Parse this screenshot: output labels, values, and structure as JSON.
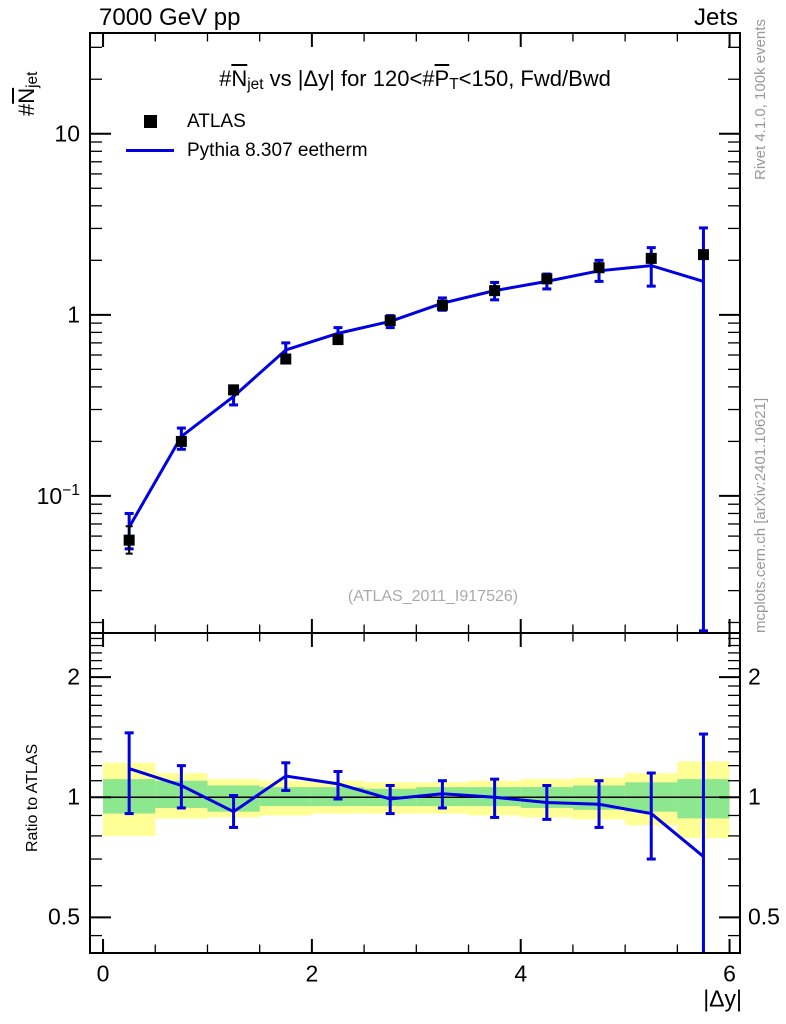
{
  "header": {
    "left": "7000 GeV pp",
    "right": "Jets"
  },
  "side_notes": {
    "top": "Rivet 4.1.0,  100k events",
    "bottom": "mcplots.cern.ch [arXiv:2401.10621]"
  },
  "watermark": "(ATLAS_2011_I917526)",
  "title_parts": {
    "p1": "#",
    "p2": "N",
    "p3": "jet",
    "p4": " vs |Δy| for 120<#",
    "p5": "P",
    "p6": "T",
    "p7": "<150, Fwd/Bwd"
  },
  "ylabel_parts": {
    "p1": "#",
    "p2": "N",
    "p3": "jet"
  },
  "legend": {
    "data_label": "ATLAS",
    "mc_label": "Pythia 8.307 eetherm"
  },
  "chart_data": {
    "type": "line",
    "title": "#Njet vs |dy| for 120<#PT<150, Fwd/Bwd",
    "xlabel": "|Δy|",
    "ylabel": "#Njet",
    "ratio_ylabel": "Ratio to ATLAS",
    "xlim": [
      -0.125,
      6.1
    ],
    "main_ylim": [
      0.0175,
      36
    ],
    "ratio_ylim": [
      0.407,
      2.58
    ],
    "x_major_ticks": [
      {
        "v": 0,
        "label": "0"
      },
      {
        "v": 2,
        "label": "2"
      },
      {
        "v": 4,
        "label": "4"
      },
      {
        "v": 6,
        "label": "6"
      }
    ],
    "main_y_ticks": [
      {
        "v": 10,
        "label": "10"
      },
      {
        "v": 1,
        "label": "1"
      },
      {
        "v": 0.1,
        "label": "10",
        "sup": "−1"
      }
    ],
    "ratio_y_ticks": [
      {
        "v": 2,
        "label": "2"
      },
      {
        "v": 1,
        "label": "1"
      },
      {
        "v": 0.5,
        "label": "0.5"
      }
    ],
    "x": [
      0.25,
      0.75,
      1.25,
      1.75,
      2.25,
      2.75,
      3.25,
      3.75,
      4.25,
      4.75,
      5.25,
      5.75
    ],
    "series": [
      {
        "name": "ATLAS",
        "style": "squares",
        "values": [
          0.057,
          0.2,
          0.385,
          0.57,
          0.73,
          0.93,
          1.13,
          1.36,
          1.58,
          1.82,
          2.05,
          2.15
        ],
        "err_lo": [
          0.048,
          0.19,
          0.366,
          0.54,
          0.69,
          0.88,
          1.07,
          1.29,
          1.5,
          1.73,
          1.95,
          2.04
        ],
        "err_hi": [
          0.068,
          0.21,
          0.404,
          0.6,
          0.77,
          0.98,
          1.19,
          1.43,
          1.66,
          1.91,
          2.15,
          2.26
        ]
      },
      {
        "name": "Pythia 8.307 eetherm",
        "style": "line",
        "values": [
          0.0672,
          0.213,
          0.354,
          0.64,
          0.79,
          0.92,
          1.16,
          1.36,
          1.53,
          1.75,
          1.87,
          1.53
        ],
        "err_lo": [
          0.051,
          0.181,
          0.318,
          0.59,
          0.74,
          0.85,
          1.06,
          1.21,
          1.39,
          1.53,
          1.44,
          0.018
        ],
        "err_hi": [
          0.08,
          0.237,
          0.405,
          0.7,
          0.85,
          0.99,
          1.24,
          1.51,
          1.68,
          2.0,
          2.35,
          3.02
        ]
      }
    ],
    "ratio": {
      "values": [
        1.18,
        1.07,
        0.92,
        1.13,
        1.08,
        0.99,
        1.02,
        1.0,
        0.97,
        0.96,
        0.91,
        0.71
      ],
      "err_lo": [
        0.91,
        0.94,
        0.84,
        1.04,
        0.99,
        0.91,
        0.94,
        0.89,
        0.88,
        0.84,
        0.7,
        0.38
      ],
      "err_hi": [
        1.45,
        1.2,
        1.01,
        1.22,
        1.16,
        1.07,
        1.1,
        1.11,
        1.07,
        1.1,
        1.15,
        1.44
      ]
    },
    "bands": {
      "edges": [
        0,
        0.5,
        1.0,
        1.5,
        2.0,
        2.5,
        3.0,
        3.5,
        4.0,
        4.5,
        5.0,
        5.5,
        6.0
      ],
      "yellow_lo": [
        0.8,
        0.885,
        0.89,
        0.9,
        0.91,
        0.91,
        0.91,
        0.9,
        0.89,
        0.88,
        0.85,
        0.79
      ],
      "yellow_hi": [
        1.22,
        1.15,
        1.11,
        1.1,
        1.1,
        1.09,
        1.09,
        1.1,
        1.11,
        1.12,
        1.15,
        1.23
      ],
      "green_lo": [
        0.91,
        0.94,
        0.92,
        0.95,
        0.95,
        0.95,
        0.95,
        0.95,
        0.94,
        0.93,
        0.92,
        0.885
      ],
      "green_hi": [
        1.11,
        1.1,
        1.07,
        1.06,
        1.06,
        1.05,
        1.06,
        1.06,
        1.06,
        1.07,
        1.09,
        1.11
      ]
    },
    "colors": {
      "mc_line": "#0000e0",
      "data_marker": "#000000",
      "band_green": "#8de78f",
      "band_yellow": "#ffff96",
      "frame": "#000000",
      "gray_text": "#999999"
    }
  }
}
